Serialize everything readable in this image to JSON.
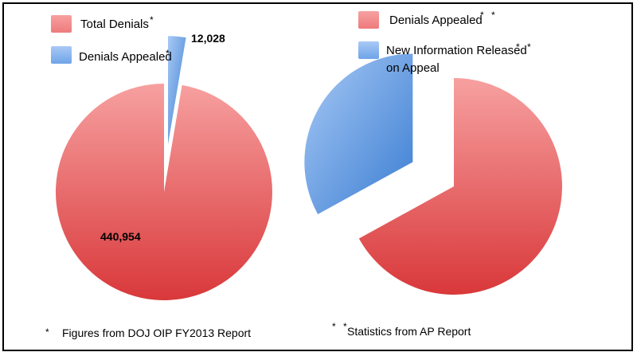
{
  "colors": {
    "red_light": "#f7a0a0",
    "red_dark": "#d9383a",
    "blue_light": "#a8c9f5",
    "blue_dark": "#3a7dd2"
  },
  "chart_data": [
    {
      "type": "pie",
      "legend": [
        {
          "label": "Total Denials",
          "mark": "*",
          "color": "red"
        },
        {
          "label": "Denials Appealed",
          "mark": "*",
          "color": "blue"
        }
      ],
      "slices": [
        {
          "label": "Total Denials",
          "value": 440954,
          "display": "440,954",
          "color": "red"
        },
        {
          "label": "Denials Appealed",
          "value": 12028,
          "display": "12,028",
          "color": "blue"
        }
      ],
      "note": {
        "mark": "*",
        "text": "Figures from DOJ OIP FY2013 Report"
      }
    },
    {
      "type": "pie",
      "legend": [
        {
          "label": "Denials Appealed",
          "mark": "* *",
          "color": "red"
        },
        {
          "label": "New Information Released",
          "label2": "on Appeal",
          "mark": "* *",
          "color": "blue"
        }
      ],
      "slices": [
        {
          "label": "Denials Appealed",
          "value": 0.67,
          "color": "red"
        },
        {
          "label": "New Information Released on Appeal",
          "value": 0.33,
          "color": "blue"
        }
      ],
      "note": {
        "mark": "* *",
        "text": "Statistics from AP Report"
      }
    }
  ]
}
